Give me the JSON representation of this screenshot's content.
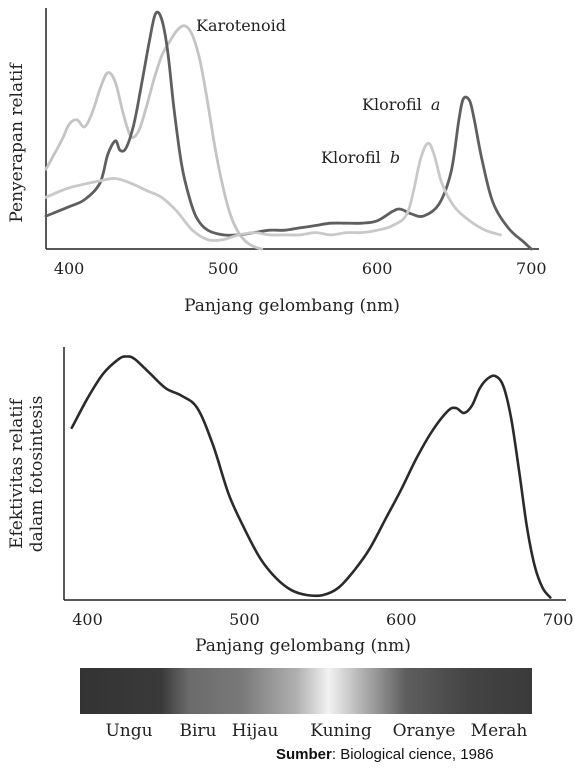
{
  "chart_data": [
    {
      "type": "line",
      "title": "",
      "xlabel": "Panjang gelombang (nm)",
      "ylabel": "Penyerapan relatif",
      "xlim": [
        385,
        705
      ],
      "ylim": [
        0,
        1
      ],
      "xticks": [
        400,
        500,
        600,
        700
      ],
      "y_tick_labels": false,
      "grid": false,
      "series": [
        {
          "name": "Karotenoid",
          "color": "#c4c4c4",
          "points": [
            [
              385,
              0.34
            ],
            [
              395,
              0.46
            ],
            [
              400,
              0.53
            ],
            [
              405,
              0.55
            ],
            [
              410,
              0.52
            ],
            [
              415,
              0.58
            ],
            [
              420,
              0.68
            ],
            [
              425,
              0.75
            ],
            [
              430,
              0.71
            ],
            [
              435,
              0.58
            ],
            [
              440,
              0.48
            ],
            [
              445,
              0.5
            ],
            [
              450,
              0.6
            ],
            [
              455,
              0.72
            ],
            [
              460,
              0.82
            ],
            [
              465,
              0.88
            ],
            [
              470,
              0.93
            ],
            [
              475,
              0.95
            ],
            [
              480,
              0.91
            ],
            [
              485,
              0.8
            ],
            [
              490,
              0.62
            ],
            [
              495,
              0.42
            ],
            [
              500,
              0.26
            ],
            [
              505,
              0.14
            ],
            [
              510,
              0.07
            ],
            [
              515,
              0.03
            ],
            [
              520,
              0.01
            ],
            [
              525,
              0.0
            ]
          ]
        },
        {
          "name": "Klorofil a",
          "color": "#5f5f5f",
          "points": [
            [
              385,
              0.14
            ],
            [
              400,
              0.18
            ],
            [
              410,
              0.21
            ],
            [
              420,
              0.28
            ],
            [
              425,
              0.4
            ],
            [
              430,
              0.46
            ],
            [
              433,
              0.42
            ],
            [
              437,
              0.43
            ],
            [
              442,
              0.53
            ],
            [
              447,
              0.7
            ],
            [
              452,
              0.88
            ],
            [
              456,
              1.0
            ],
            [
              460,
              0.98
            ],
            [
              464,
              0.84
            ],
            [
              468,
              0.6
            ],
            [
              473,
              0.36
            ],
            [
              478,
              0.22
            ],
            [
              483,
              0.13
            ],
            [
              490,
              0.08
            ],
            [
              500,
              0.06
            ],
            [
              510,
              0.06
            ],
            [
              520,
              0.07
            ],
            [
              530,
              0.08
            ],
            [
              540,
              0.08
            ],
            [
              550,
              0.09
            ],
            [
              560,
              0.1
            ],
            [
              570,
              0.11
            ],
            [
              580,
              0.11
            ],
            [
              590,
              0.11
            ],
            [
              600,
              0.12
            ],
            [
              610,
              0.16
            ],
            [
              615,
              0.17
            ],
            [
              622,
              0.15
            ],
            [
              630,
              0.14
            ],
            [
              640,
              0.19
            ],
            [
              648,
              0.33
            ],
            [
              653,
              0.55
            ],
            [
              656,
              0.64
            ],
            [
              660,
              0.63
            ],
            [
              663,
              0.55
            ],
            [
              668,
              0.38
            ],
            [
              675,
              0.2
            ],
            [
              685,
              0.09
            ],
            [
              695,
              0.03
            ],
            [
              700,
              0.0
            ]
          ]
        },
        {
          "name": "Klorofil b",
          "color": "#c9c9c9",
          "points": [
            [
              385,
              0.22
            ],
            [
              400,
              0.26
            ],
            [
              420,
              0.29
            ],
            [
              430,
              0.3
            ],
            [
              440,
              0.28
            ],
            [
              450,
              0.25
            ],
            [
              460,
              0.22
            ],
            [
              470,
              0.16
            ],
            [
              480,
              0.08
            ],
            [
              490,
              0.04
            ],
            [
              500,
              0.04
            ],
            [
              510,
              0.06
            ],
            [
              520,
              0.07
            ],
            [
              530,
              0.06
            ],
            [
              540,
              0.06
            ],
            [
              550,
              0.06
            ],
            [
              560,
              0.07
            ],
            [
              570,
              0.06
            ],
            [
              580,
              0.07
            ],
            [
              590,
              0.07
            ],
            [
              600,
              0.08
            ],
            [
              610,
              0.1
            ],
            [
              620,
              0.16
            ],
            [
              628,
              0.38
            ],
            [
              633,
              0.45
            ],
            [
              637,
              0.4
            ],
            [
              642,
              0.28
            ],
            [
              650,
              0.18
            ],
            [
              660,
              0.12
            ],
            [
              670,
              0.08
            ],
            [
              680,
              0.06
            ]
          ]
        }
      ],
      "annotations": {
        "karotenoid": "Karotenoid",
        "klorofil_a_name": "Klorofil",
        "klorofil_a_letter": "a",
        "klorofil_b_name": "Klorofil",
        "klorofil_b_letter": "b"
      }
    },
    {
      "type": "line",
      "title": "",
      "xlabel": "Panjang gelombang (nm)",
      "ylabel_line1": "Efektivitas relatif",
      "ylabel_line2": "dalam fotosintesis",
      "xlim": [
        385,
        705
      ],
      "ylim": [
        0,
        1
      ],
      "xticks": [
        400,
        500,
        600,
        700
      ],
      "y_tick_labels": false,
      "grid": false,
      "series": [
        {
          "name": "",
          "color": "#2a2a2a",
          "points": [
            [
              390,
              0.7
            ],
            [
              400,
              0.82
            ],
            [
              410,
              0.92
            ],
            [
              420,
              0.98
            ],
            [
              425,
              0.99
            ],
            [
              430,
              0.98
            ],
            [
              440,
              0.92
            ],
            [
              450,
              0.86
            ],
            [
              460,
              0.83
            ],
            [
              470,
              0.78
            ],
            [
              480,
              0.63
            ],
            [
              490,
              0.43
            ],
            [
              500,
              0.29
            ],
            [
              510,
              0.17
            ],
            [
              520,
              0.09
            ],
            [
              530,
              0.04
            ],
            [
              540,
              0.02
            ],
            [
              550,
              0.02
            ],
            [
              560,
              0.05
            ],
            [
              570,
              0.12
            ],
            [
              580,
              0.21
            ],
            [
              590,
              0.33
            ],
            [
              600,
              0.45
            ],
            [
              610,
              0.58
            ],
            [
              620,
              0.69
            ],
            [
              630,
              0.77
            ],
            [
              635,
              0.78
            ],
            [
              640,
              0.76
            ],
            [
              645,
              0.79
            ],
            [
              650,
              0.86
            ],
            [
              655,
              0.9
            ],
            [
              660,
              0.91
            ],
            [
              665,
              0.87
            ],
            [
              670,
              0.74
            ],
            [
              675,
              0.53
            ],
            [
              680,
              0.3
            ],
            [
              685,
              0.14
            ],
            [
              690,
              0.05
            ],
            [
              695,
              0.01
            ]
          ]
        }
      ]
    }
  ],
  "spectrum_labels": [
    "Ungu",
    "Biru",
    "Hijau",
    "Kuning",
    "Oranye",
    "Merah"
  ],
  "source": {
    "prefix": "Sumber",
    "text": ": Biological  cience, 1986"
  }
}
